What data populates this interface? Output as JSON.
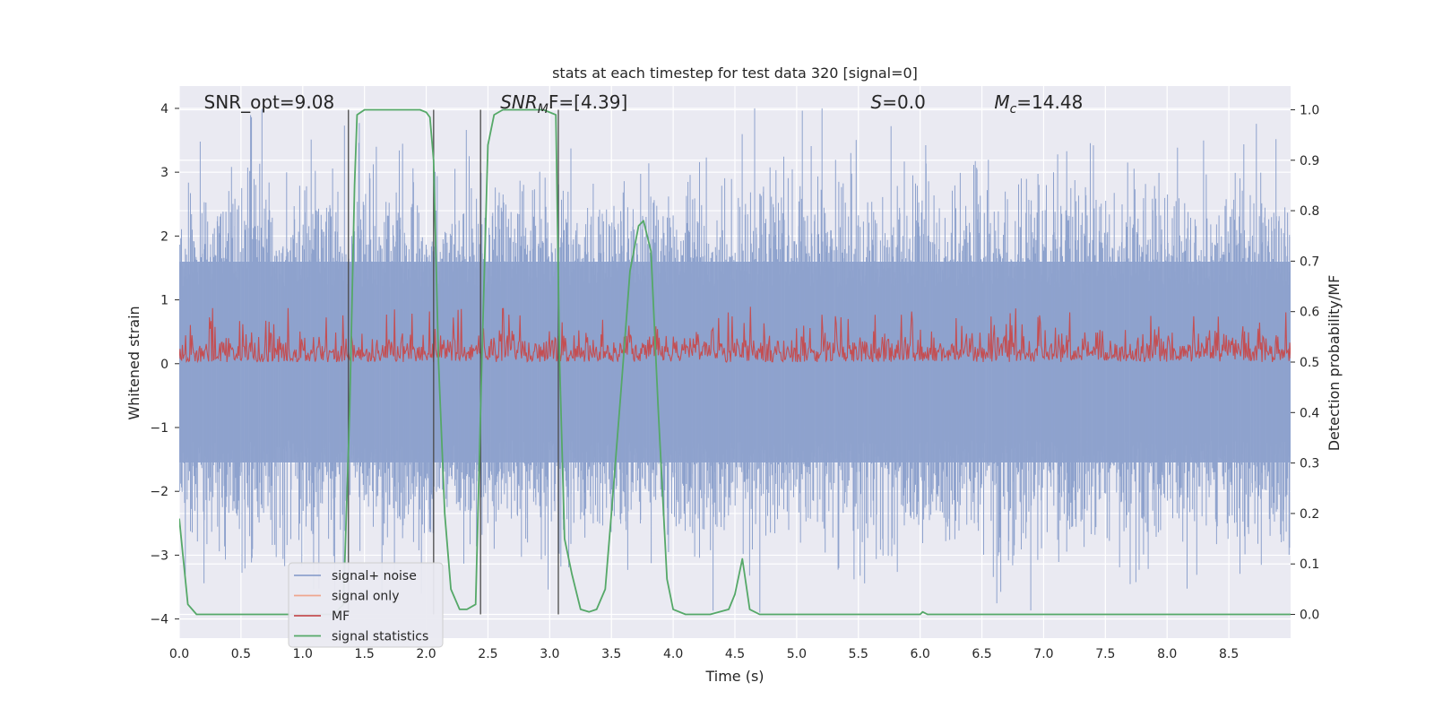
{
  "chart_data": {
    "type": "line",
    "title": "stats at each timestep for test data 320 [signal=0]",
    "xlabel": "Time (s)",
    "ylabel": "Whitened strain",
    "y2label": "Detection probability/MF",
    "xlim": [
      0.0,
      9.0
    ],
    "ylim": [
      -4.3,
      4.35
    ],
    "y2lim": [
      -0.047,
      1.047
    ],
    "xticks": [
      0.0,
      0.5,
      1.0,
      1.5,
      2.0,
      2.5,
      3.0,
      3.5,
      4.0,
      4.5,
      5.0,
      5.5,
      6.0,
      6.5,
      7.0,
      7.5,
      8.0,
      8.5
    ],
    "xtick_labels": [
      "0.0",
      "0.5",
      "1.0",
      "1.5",
      "2.0",
      "2.5",
      "3.0",
      "3.5",
      "4.0",
      "4.5",
      "5.0",
      "5.5",
      "6.0",
      "6.5",
      "7.0",
      "7.5",
      "8.0",
      "8.5"
    ],
    "yticks": [
      -4,
      -3,
      -2,
      -1,
      0,
      1,
      2,
      3,
      4
    ],
    "ytick_labels": [
      "−4",
      "−3",
      "−2",
      "−1",
      "0",
      "1",
      "2",
      "3",
      "4"
    ],
    "y2ticks": [
      0.0,
      0.1,
      0.2,
      0.3,
      0.4,
      0.5,
      0.6,
      0.7,
      0.8,
      0.9,
      1.0
    ],
    "y2tick_labels": [
      "0.0",
      "0.1",
      "0.2",
      "0.3",
      "0.4",
      "0.5",
      "0.6",
      "0.7",
      "0.8",
      "0.9",
      "1.0"
    ],
    "grid": true,
    "legend_position": "lower-left",
    "series": [
      {
        "name": "signal+ noise",
        "color": "#8ea2cd",
        "kind": "noise",
        "description_values": {
          "band_low": -1.55,
          "band_high": 1.6,
          "peak_low": -3.9,
          "peak_high": 4.0
        }
      },
      {
        "name": "signal only",
        "color": "#eea68f",
        "kind": "flat"
      },
      {
        "name": "MF",
        "color": "#c44e52",
        "kind": "mf",
        "description_values": {
          "low": 0.5,
          "high": 0.58,
          "peak": 0.63
        }
      },
      {
        "name": "signal statistics",
        "color": "#55a868",
        "kind": "line",
        "x": [
          0.0,
          0.07,
          0.14,
          0.3,
          0.6,
          1.0,
          1.25,
          1.33,
          1.38,
          1.42,
          1.44,
          1.5,
          1.55,
          1.65,
          1.8,
          1.95,
          2.0,
          2.03,
          2.06,
          2.1,
          2.15,
          2.2,
          2.27,
          2.33,
          2.4,
          2.45,
          2.5,
          2.55,
          2.62,
          2.75,
          2.95,
          3.05,
          3.08,
          3.12,
          3.18,
          3.25,
          3.32,
          3.38,
          3.45,
          3.5,
          3.58,
          3.65,
          3.72,
          3.76,
          3.82,
          3.88,
          3.95,
          4.0,
          4.1,
          4.3,
          4.45,
          4.5,
          4.56,
          4.62,
          4.7,
          5.0,
          5.5,
          6.0,
          6.02,
          6.06,
          6.5,
          7.0,
          7.5,
          8.0,
          8.5,
          9.0
        ],
        "y": [
          0.19,
          0.02,
          0.0,
          0.0,
          0.0,
          0.0,
          0.0,
          0.02,
          0.4,
          0.85,
          0.99,
          1.0,
          1.0,
          1.0,
          1.0,
          1.0,
          0.995,
          0.985,
          0.9,
          0.5,
          0.2,
          0.05,
          0.01,
          0.01,
          0.02,
          0.5,
          0.93,
          0.99,
          1.0,
          1.0,
          1.0,
          0.99,
          0.5,
          0.15,
          0.08,
          0.01,
          0.005,
          0.01,
          0.05,
          0.2,
          0.45,
          0.68,
          0.77,
          0.78,
          0.72,
          0.4,
          0.07,
          0.01,
          0.0,
          0.0,
          0.01,
          0.04,
          0.11,
          0.01,
          0.0,
          0.0,
          0.0,
          0.0,
          0.005,
          0.0,
          0.0,
          0.0,
          0.0,
          0.0,
          0.0,
          0.0
        ]
      }
    ],
    "vertical_lines_x": [
      1.37,
      2.06,
      2.44,
      3.07
    ],
    "annotations": [
      {
        "id": "snr_opt",
        "text": "SNR_opt=9.08",
        "x": 0.2
      },
      {
        "id": "snr_mf",
        "label": "SNR",
        "sub": "M",
        "suffix": "F=[4.39]",
        "x": 2.6
      },
      {
        "id": "s",
        "label": "S",
        "suffix": "=0.0",
        "x": 5.6
      },
      {
        "id": "mc",
        "label": "M",
        "sub": "c",
        "suffix": "=14.48",
        "x": 6.6
      }
    ]
  }
}
